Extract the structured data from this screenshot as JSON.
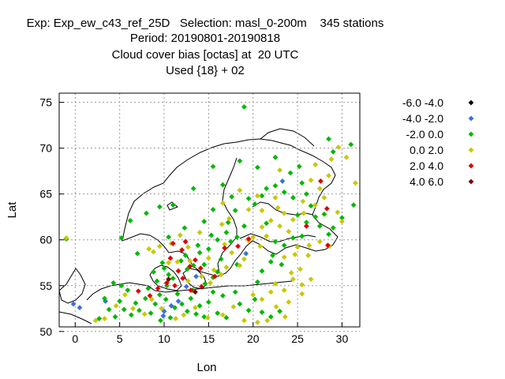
{
  "titles": [
    "Exp: Exp_ew_c43_ref_25D   Selection: masl_0-200m    345 stations",
    "Period: 20190801-20190818",
    "Cloud cover bias [octas] at  20 UTC",
    "Used {18} + 02"
  ],
  "chart_data": {
    "type": "scatter",
    "title": "Cloud cover bias [octas] at  20 UTC",
    "xlabel": "Lon",
    "ylabel": "Lat",
    "xlim": [
      -1.8,
      32
    ],
    "ylim": [
      50.5,
      76
    ],
    "xticks": [
      0,
      5,
      10,
      15,
      20,
      25,
      30
    ],
    "yticks": [
      50,
      55,
      60,
      65,
      70,
      75
    ],
    "grid": true,
    "legend_position": "top-right outside plot",
    "series": [
      {
        "name": "-6.0 -4.0",
        "color": "#000000",
        "points": []
      },
      {
        "name": "-4.0 -2.0",
        "color": "#3a6fe0",
        "points": [
          [
            -0.2,
            53.0
          ],
          [
            0.5,
            52.6
          ],
          [
            3.4,
            53.3
          ],
          [
            10.0,
            52.2
          ],
          [
            9.9,
            51.7
          ],
          [
            10.8,
            52.8
          ],
          [
            11.6,
            53.3
          ],
          [
            12.5,
            54.9
          ],
          [
            13.6,
            56.0
          ],
          [
            19.2,
            58.5
          ],
          [
            23.3,
            66.4
          ]
        ]
      },
      {
        "name": "-2.0 0.0",
        "color": "#00b800",
        "points": [
          [
            -1.0,
            60.1
          ],
          [
            2.7,
            51.4
          ],
          [
            3.3,
            53.6
          ],
          [
            4.3,
            55.3
          ],
          [
            5.2,
            55.0
          ],
          [
            3.8,
            52.4
          ],
          [
            4.5,
            51.6
          ],
          [
            5.0,
            53.3
          ],
          [
            5.5,
            52.4
          ],
          [
            6.3,
            51.8
          ],
          [
            6.8,
            53.1
          ],
          [
            5.9,
            54.5
          ],
          [
            7.2,
            52.3
          ],
          [
            7.9,
            53.6
          ],
          [
            8.5,
            52.0
          ],
          [
            9.0,
            53.0
          ],
          [
            9.6,
            51.2
          ],
          [
            8.2,
            54.7
          ],
          [
            9.5,
            54.0
          ],
          [
            10.2,
            53.5
          ],
          [
            10.7,
            51.5
          ],
          [
            11.2,
            52.6
          ],
          [
            11.5,
            54.1
          ],
          [
            12.0,
            53.0
          ],
          [
            12.6,
            52.2
          ],
          [
            13.0,
            53.6
          ],
          [
            13.6,
            51.9
          ],
          [
            14.0,
            52.8
          ],
          [
            14.5,
            51.6
          ],
          [
            13.2,
            54.5
          ],
          [
            15.0,
            53.2
          ],
          [
            16.0,
            52.0
          ],
          [
            17.0,
            51.5
          ],
          [
            15.5,
            54.3
          ],
          [
            16.6,
            53.9
          ],
          [
            18.0,
            54.3
          ],
          [
            18.5,
            53.0
          ],
          [
            19.5,
            52.3
          ],
          [
            20.2,
            53.5
          ],
          [
            21.0,
            52.1
          ],
          [
            22.0,
            51.6
          ],
          [
            23.0,
            52.2
          ],
          [
            8.8,
            56.5
          ],
          [
            9.2,
            55.5
          ],
          [
            10.0,
            56.9
          ],
          [
            10.5,
            56.2
          ],
          [
            11.0,
            55.8
          ],
          [
            9.8,
            57.5
          ],
          [
            10.3,
            55.0
          ],
          [
            11.9,
            57.7
          ],
          [
            12.6,
            56.8
          ],
          [
            13.3,
            57.2
          ],
          [
            12.4,
            58.3
          ],
          [
            14.0,
            58.6
          ],
          [
            13.8,
            59.4
          ],
          [
            15.0,
            59.0
          ],
          [
            15.3,
            60.5
          ],
          [
            14.5,
            57.3
          ],
          [
            16.0,
            56.5
          ],
          [
            16.4,
            57.9
          ],
          [
            16.0,
            60.0
          ],
          [
            17.0,
            60.8
          ],
          [
            17.5,
            59.8
          ],
          [
            18.2,
            60.3
          ],
          [
            19.0,
            61.5
          ],
          [
            17.2,
            61.9
          ],
          [
            18.0,
            63.2
          ],
          [
            19.5,
            64.5
          ],
          [
            20.2,
            63.9
          ],
          [
            21.0,
            64.8
          ],
          [
            21.5,
            65.6
          ],
          [
            22.5,
            65.9
          ],
          [
            23.5,
            65.2
          ],
          [
            24.2,
            67.3
          ],
          [
            25.5,
            66.2
          ],
          [
            24.5,
            64.6
          ],
          [
            26.0,
            65.0
          ],
          [
            26.5,
            63.7
          ],
          [
            27.0,
            62.5
          ],
          [
            28.0,
            62.8
          ],
          [
            29.0,
            61.3
          ],
          [
            28.5,
            60.6
          ],
          [
            27.5,
            61.5
          ],
          [
            26.0,
            61.9
          ],
          [
            25.5,
            60.4
          ],
          [
            24.5,
            60.2
          ],
          [
            23.5,
            59.4
          ],
          [
            22.5,
            59.8
          ],
          [
            22.2,
            58.3
          ],
          [
            23.2,
            57.3
          ],
          [
            22.0,
            57.6
          ],
          [
            21.0,
            56.6
          ],
          [
            20.5,
            55.4
          ],
          [
            18.2,
            57.3
          ],
          [
            15.5,
            55.9
          ],
          [
            14.6,
            55.2
          ],
          [
            19.0,
            74.5
          ],
          [
            9.5,
            63.6
          ],
          [
            11.0,
            63.8
          ],
          [
            13.3,
            65.6
          ],
          [
            15.5,
            68.0
          ],
          [
            18.5,
            68.6
          ],
          [
            20.5,
            67.9
          ],
          [
            22.5,
            69.0
          ],
          [
            25.2,
            68.0
          ],
          [
            29.0,
            69.6
          ],
          [
            31.0,
            70.4
          ],
          [
            28.5,
            71.0
          ],
          [
            16.6,
            66.0
          ],
          [
            17.6,
            64.7
          ],
          [
            12.3,
            61.3
          ],
          [
            14.5,
            62.0
          ],
          [
            15.5,
            63.3
          ],
          [
            10.5,
            60.3
          ],
          [
            7.0,
            58.5
          ],
          [
            5.2,
            60.2
          ],
          [
            6.2,
            62.1
          ],
          [
            8.0,
            62.9
          ],
          [
            25.0,
            62.7
          ],
          [
            21.5,
            61.8
          ],
          [
            30.0,
            62.4
          ],
          [
            31.3,
            63.8
          ]
        ]
      },
      {
        "name": "0.0 2.0",
        "color": "#c8c800",
        "points": [
          [
            -1.0,
            60.2
          ],
          [
            2.3,
            51.2
          ],
          [
            3.3,
            51.4
          ],
          [
            4.6,
            52.8
          ],
          [
            5.6,
            54.0
          ],
          [
            6.5,
            52.5
          ],
          [
            7.8,
            51.9
          ],
          [
            8.6,
            53.5
          ],
          [
            9.7,
            52.5
          ],
          [
            11.3,
            51.4
          ],
          [
            12.2,
            51.8
          ],
          [
            13.5,
            52.6
          ],
          [
            14.9,
            51.5
          ],
          [
            16.6,
            51.8
          ],
          [
            17.8,
            52.7
          ],
          [
            19.0,
            51.2
          ],
          [
            20.5,
            51.0
          ],
          [
            21.6,
            51.2
          ],
          [
            22.6,
            52.7
          ],
          [
            23.6,
            51.6
          ],
          [
            21.0,
            53.5
          ],
          [
            22.0,
            54.3
          ],
          [
            20.0,
            54.0
          ],
          [
            23.5,
            54.5
          ],
          [
            24.0,
            53.2
          ],
          [
            22.5,
            55.2
          ],
          [
            24.5,
            55.7
          ],
          [
            25.5,
            55.1
          ],
          [
            26.5,
            55.7
          ],
          [
            25.5,
            54.1
          ],
          [
            24.3,
            56.4
          ],
          [
            25.3,
            56.8
          ],
          [
            23.5,
            58.1
          ],
          [
            24.7,
            58.4
          ],
          [
            26.2,
            58.3
          ],
          [
            25.0,
            59.2
          ],
          [
            26.3,
            59.4
          ],
          [
            27.5,
            59.8
          ],
          [
            28.6,
            59.3
          ],
          [
            24.0,
            60.9
          ],
          [
            23.0,
            61.5
          ],
          [
            22.0,
            62.1
          ],
          [
            24.5,
            62.2
          ],
          [
            25.7,
            62.9
          ],
          [
            27.0,
            63.8
          ],
          [
            28.0,
            64.6
          ],
          [
            29.5,
            63.0
          ],
          [
            30.0,
            62.0
          ],
          [
            27.5,
            65.6
          ],
          [
            26.5,
            66.5
          ],
          [
            28.5,
            67.0
          ],
          [
            27.0,
            68.2
          ],
          [
            28.8,
            68.8
          ],
          [
            29.6,
            70.1
          ],
          [
            22.8,
            63.5
          ],
          [
            21.0,
            63.2
          ],
          [
            21.0,
            61.4
          ],
          [
            20.0,
            60.3
          ],
          [
            21.5,
            60.4
          ],
          [
            20.8,
            59.3
          ],
          [
            19.5,
            59.9
          ],
          [
            19.0,
            57.9
          ],
          [
            18.5,
            57.2
          ],
          [
            17.6,
            58.6
          ],
          [
            16.8,
            59.5
          ],
          [
            17.0,
            57.0
          ],
          [
            16.4,
            56.2
          ],
          [
            15.6,
            56.7
          ],
          [
            15.0,
            58.0
          ],
          [
            14.2,
            56.0
          ],
          [
            12.9,
            57.7
          ],
          [
            12.7,
            55.5
          ],
          [
            11.5,
            57.6
          ],
          [
            10.5,
            57.5
          ],
          [
            8.8,
            58.7
          ],
          [
            8.3,
            59.0
          ],
          [
            9.5,
            59.3
          ],
          [
            10.8,
            59.6
          ],
          [
            11.8,
            60.5
          ],
          [
            12.7,
            59.2
          ],
          [
            14.0,
            60.8
          ],
          [
            16.5,
            61.7
          ],
          [
            17.3,
            62.3
          ],
          [
            19.5,
            63.3
          ],
          [
            20.5,
            64.8
          ],
          [
            22.5,
            64.6
          ],
          [
            23.5,
            62.9
          ],
          [
            25.6,
            64.2
          ],
          [
            18.5,
            65.4
          ],
          [
            16.6,
            64.0
          ],
          [
            30.5,
            69.0
          ],
          [
            31.5,
            66.2
          ],
          [
            23.0,
            67.6
          ],
          [
            15.2,
            55.3
          ]
        ]
      },
      {
        "name": "2.0 4.0",
        "color": "#e00000",
        "points": [
          [
            7.1,
            54.4
          ],
          [
            8.4,
            53.9
          ],
          [
            9.3,
            54.7
          ],
          [
            10.3,
            55.3
          ],
          [
            11.2,
            55.0
          ],
          [
            12.1,
            55.8
          ],
          [
            13.0,
            54.5
          ],
          [
            14.2,
            54.9
          ],
          [
            11.6,
            56.6
          ],
          [
            12.9,
            57.1
          ],
          [
            10.7,
            58.0
          ],
          [
            11.0,
            59.6
          ],
          [
            12.0,
            58.9
          ],
          [
            13.5,
            57.8
          ],
          [
            14.1,
            56.9
          ],
          [
            15.7,
            56.0
          ],
          [
            16.8,
            59.1
          ],
          [
            18.3,
            59.3
          ],
          [
            19.5,
            60.1
          ],
          [
            26.0,
            61.5
          ],
          [
            27.6,
            66.4
          ],
          [
            28.3,
            63.4
          ],
          [
            28.4,
            59.4
          ],
          [
            12.4,
            59.8
          ]
        ]
      },
      {
        "name": "4.0 6.0",
        "color": "#800000",
        "points": [
          [
            10.5,
            55.7
          ],
          [
            13.5,
            54.3
          ]
        ]
      }
    ]
  }
}
